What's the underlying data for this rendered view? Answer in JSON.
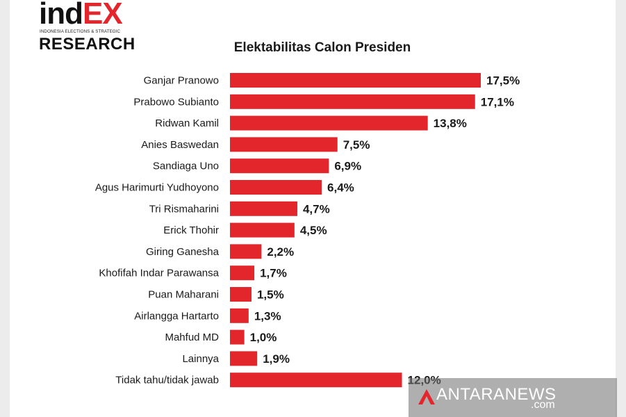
{
  "logo": {
    "ind": "ind",
    "ex": "EX",
    "subtitle": "INDONESIA ELECTIONS & STRATEGIC",
    "research": "RESEARCH"
  },
  "watermark": {
    "text": "ANTARANEWS",
    "sub": ".com"
  },
  "colors": {
    "bar": "#e3252c",
    "accent": "#e3252c"
  },
  "chart_data": {
    "type": "bar",
    "orientation": "horizontal",
    "title": "Elektabilitas Calon Presiden",
    "categories": [
      "Ganjar Pranowo",
      "Prabowo Subianto",
      "Ridwan Kamil",
      "Anies Baswedan",
      "Sandiaga Uno",
      "Agus Harimurti Yudhoyono",
      "Tri Rismaharini",
      "Erick Thohir",
      "Giring Ganesha",
      "Khofifah Indar Parawansa",
      "Puan Maharani",
      "Airlangga Hartarto",
      "Mahfud MD",
      "Lainnya",
      "Tidak tahu/tidak jawab"
    ],
    "values": [
      17.5,
      17.1,
      13.8,
      7.5,
      6.9,
      6.4,
      4.7,
      4.5,
      2.2,
      1.7,
      1.5,
      1.3,
      1.0,
      1.9,
      12.0
    ],
    "value_labels": [
      "17,5%",
      "17,1%",
      "13,8%",
      "7,5%",
      "6,9%",
      "6,4%",
      "4,7%",
      "4,5%",
      "2,2%",
      "1,7%",
      "1,5%",
      "1,3%",
      "1,0%",
      "1,9%",
      "12,0%"
    ],
    "xlim": [
      0,
      17.5
    ],
    "grid": false,
    "legend": "none"
  }
}
